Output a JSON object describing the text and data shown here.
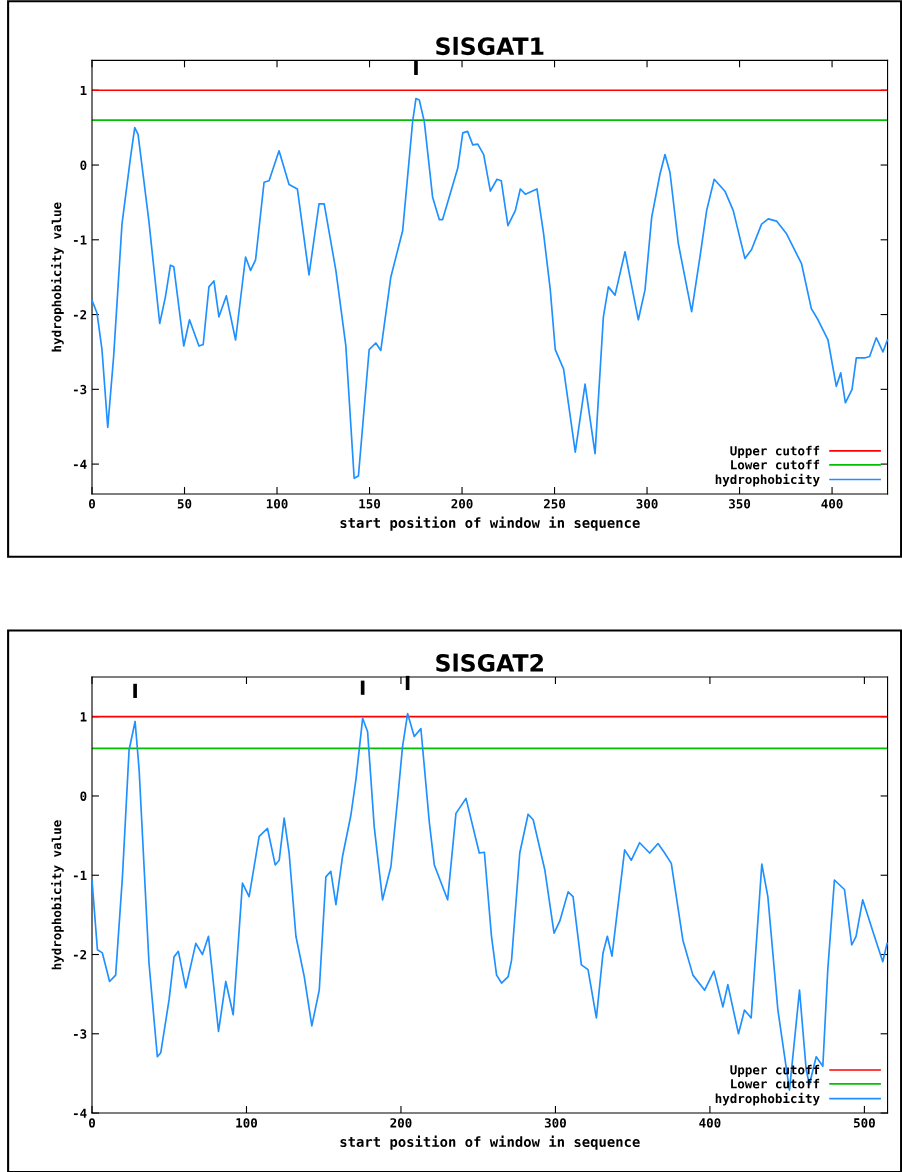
{
  "chart_data": [
    {
      "type": "line",
      "title": "SlSGAT1",
      "xlabel": "start position of window in sequence",
      "ylabel": "hydrophobicity value",
      "xlim": [
        0,
        430
      ],
      "ylim": [
        -4.4,
        1.4
      ],
      "xticks": [
        0,
        50,
        100,
        150,
        200,
        250,
        300,
        350,
        400
      ],
      "yticks": [
        -4,
        -3,
        -2,
        -1,
        0,
        1
      ],
      "legend": "bottom right",
      "grid": false,
      "ref_lines": [
        {
          "axis": "y",
          "value": 1,
          "label": "Upper cutoff",
          "color": "#ff0000"
        },
        {
          "axis": "y",
          "value": 0.6,
          "label": "Lower cutoff",
          "color": "#00c000"
        }
      ],
      "annotations": [
        {
          "text": "I",
          "x": 175.1,
          "y": 0.89
        }
      ],
      "series": [
        {
          "name": "hydrophobicity",
          "color": "#1e90ff",
          "x": [
            0,
            2.7,
            5.4,
            8.5,
            11.7,
            16.2,
            20.8,
            23.1,
            24.9,
            30.7,
            36.6,
            39.7,
            42.4,
            44.2,
            49.6,
            52.7,
            57.8,
            60.1,
            63.2,
            65.9,
            68.6,
            72.6,
            77.6,
            83.0,
            85.7,
            88.4,
            93.0,
            95.7,
            101.1,
            106.5,
            111,
            117.3,
            122.7,
            125.5,
            131.8,
            137.2,
            141.7,
            144,
            149.8,
            153.4,
            156.1,
            161.5,
            167.9,
            173.3,
            175.1,
            176.9,
            179.6,
            184.1,
            187.7,
            189.5,
            197.7,
            200.4,
            203,
            205.8,
            208.5,
            211.7,
            215.3,
            218.9,
            221.2,
            224.8,
            228.8,
            231.5,
            234.2,
            240.5,
            244.1,
            247.7,
            250.4,
            254.9,
            261.2,
            266.5,
            271.9,
            276.4,
            279.1,
            282.7,
            288.1,
            295.3,
            298.9,
            302.5,
            307,
            309.7,
            312.4,
            316.9,
            324.1,
            328.6,
            332.2,
            336.3,
            342.1,
            346.6,
            352.9,
            356.5,
            361.9,
            365.5,
            370,
            375.4,
            383.5,
            388.8,
            392.4,
            397.8,
            402.3,
            404.7,
            407.2,
            410.8,
            413.1,
            417.6,
            420.3,
            423.9,
            427.5,
            429.9
          ],
          "values": [
            -1.81,
            -1.98,
            -2.47,
            -3.51,
            -2.56,
            -0.79,
            0.1,
            0.5,
            0.41,
            -0.74,
            -2.12,
            -1.76,
            -1.34,
            -1.36,
            -2.42,
            -2.07,
            -2.42,
            -2.4,
            -1.63,
            -1.55,
            -2.03,
            -1.75,
            -2.34,
            -1.23,
            -1.41,
            -1.27,
            -0.23,
            -0.21,
            0.19,
            -0.26,
            -0.32,
            -1.47,
            -0.52,
            -0.52,
            -1.41,
            -2.42,
            -4.19,
            -4.16,
            -2.47,
            -2.38,
            -2.48,
            -1.5,
            -0.88,
            0.58,
            0.89,
            0.87,
            0.58,
            -0.43,
            -0.73,
            -0.73,
            -0.04,
            0.43,
            0.45,
            0.27,
            0.28,
            0.14,
            -0.35,
            -0.19,
            -0.21,
            -0.81,
            -0.61,
            -0.32,
            -0.39,
            -0.32,
            -0.92,
            -1.67,
            -2.47,
            -2.73,
            -3.84,
            -2.93,
            -3.86,
            -2.03,
            -1.63,
            -1.74,
            -1.16,
            -2.07,
            -1.67,
            -0.7,
            -0.12,
            0.14,
            -0.1,
            -1.05,
            -1.96,
            -1.23,
            -0.61,
            -0.19,
            -0.35,
            -0.61,
            -1.25,
            -1.13,
            -0.79,
            -0.72,
            -0.75,
            -0.92,
            -1.32,
            -1.92,
            -2.07,
            -2.34,
            -2.96,
            -2.78,
            -3.18,
            -3.0,
            -2.58,
            -2.58,
            -2.56,
            -2.31,
            -2.5,
            -2.34
          ]
        }
      ]
    },
    {
      "type": "line",
      "title": "SlSGAT2",
      "xlabel": "start position of window in sequence",
      "ylabel": "hydrophobicity value",
      "xlim": [
        0,
        515
      ],
      "ylim": [
        -4,
        1.5
      ],
      "xticks": [
        0,
        100,
        200,
        300,
        400,
        500
      ],
      "yticks": [
        -4,
        -3,
        -2,
        -1,
        0,
        1
      ],
      "legend": "bottom right",
      "grid": false,
      "ref_lines": [
        {
          "axis": "y",
          "value": 1,
          "label": "Upper cutoff",
          "color": "#ff0000"
        },
        {
          "axis": "y",
          "value": 0.6,
          "label": "Lower cutoff",
          "color": "#00c000"
        }
      ],
      "annotations": [
        {
          "text": "I",
          "x": 27.9,
          "y": 0.94
        },
        {
          "text": "I",
          "x": 175.2,
          "y": 0.98
        },
        {
          "text": "I",
          "x": 204.3,
          "y": 1.04
        }
      ],
      "series": [
        {
          "name": "hydrophobicity",
          "color": "#1e90ff",
          "x": [
            0,
            3.5,
            6.7,
            11.4,
            15.3,
            19.7,
            24,
            27.9,
            30.5,
            36.9,
            42.3,
            44.5,
            49.9,
            53.1,
            55.9,
            60.7,
            67.2,
            71.5,
            75.4,
            81.9,
            86.6,
            91.4,
            97.4,
            101.7,
            108.2,
            113.6,
            118.6,
            121.2,
            124.4,
            127.6,
            132,
            137.4,
            142.3,
            147.1,
            151.4,
            154.6,
            157.9,
            162.2,
            167.6,
            170.8,
            175.2,
            178.4,
            182.7,
            188.1,
            193.5,
            197.8,
            201,
            204.3,
            208.6,
            212.9,
            218.4,
            221.6,
            230.2,
            235.6,
            242.1,
            250.7,
            254,
            258.6,
            261.9,
            265.1,
            269.4,
            271.6,
            276.9,
            282.3,
            285.6,
            293.1,
            299.1,
            302.8,
            308.2,
            311.4,
            316.8,
            321.1,
            326.5,
            330.8,
            333.6,
            336.6,
            344.8,
            349.1,
            354.5,
            361,
            366.4,
            370.7,
            375,
            382.5,
            389,
            396.6,
            402.6,
            408.4,
            411.6,
            418.5,
            422.4,
            426.7,
            433.6,
            437.5,
            444,
            451.5,
            458,
            462.3,
            464.4,
            468.8,
            473.1,
            476.3,
            480.6,
            487.1,
            491.8,
            494.6,
            498.9,
            506.5,
            511.9,
            514.7
          ],
          "values": [
            -1.06,
            -1.94,
            -1.98,
            -2.34,
            -2.26,
            -1.02,
            0.58,
            0.94,
            0.33,
            -2.11,
            -3.29,
            -3.24,
            -2.57,
            -2.03,
            -1.96,
            -2.42,
            -1.86,
            -2.0,
            -1.77,
            -2.97,
            -2.34,
            -2.76,
            -1.1,
            -1.27,
            -0.51,
            -0.41,
            -0.87,
            -0.81,
            -0.28,
            -0.72,
            -1.77,
            -2.28,
            -2.9,
            -2.45,
            -1.02,
            -0.95,
            -1.37,
            -0.76,
            -0.24,
            0.2,
            0.98,
            0.81,
            -0.39,
            -1.31,
            -0.89,
            -0.05,
            0.62,
            1.04,
            0.75,
            0.85,
            -0.34,
            -0.87,
            -1.31,
            -0.22,
            -0.03,
            -0.72,
            -0.71,
            -1.77,
            -2.26,
            -2.36,
            -2.28,
            -2.07,
            -0.72,
            -0.23,
            -0.3,
            -0.93,
            -1.73,
            -1.58,
            -1.21,
            -1.27,
            -2.13,
            -2.19,
            -2.8,
            -1.98,
            -1.77,
            -2.02,
            -0.68,
            -0.81,
            -0.59,
            -0.72,
            -0.6,
            -0.72,
            -0.85,
            -1.82,
            -2.26,
            -2.45,
            -2.21,
            -2.66,
            -2.38,
            -3.0,
            -2.7,
            -2.8,
            -0.86,
            -1.27,
            -2.7,
            -3.71,
            -2.45,
            -3.45,
            -3.64,
            -3.29,
            -3.41,
            -2.19,
            -1.06,
            -1.18,
            -1.88,
            -1.77,
            -1.31,
            -1.77,
            -2.09,
            -1.86
          ]
        }
      ]
    }
  ]
}
